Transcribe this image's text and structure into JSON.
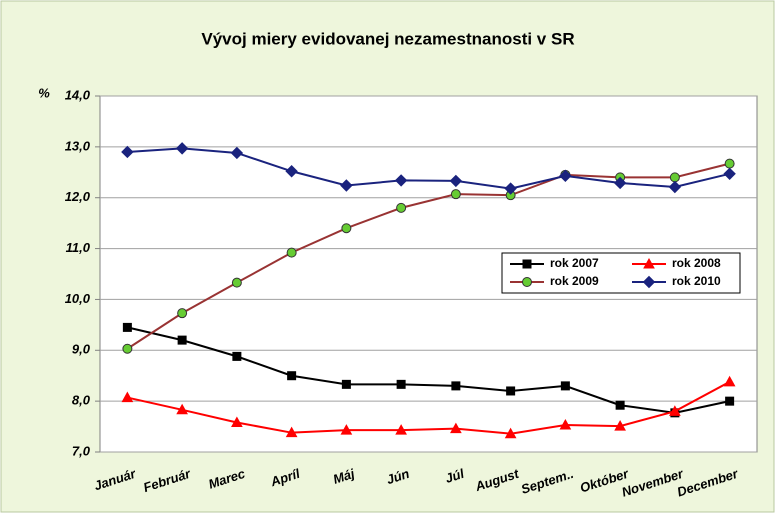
{
  "chart_data": {
    "type": "line",
    "title": "Vývoj miery evidovanej nezamestnanosti v SR",
    "y_label": "%",
    "categories": [
      "Január",
      "Február",
      "Marec",
      "Apríl",
      "Máj",
      "Jún",
      "Júl",
      "August",
      "Septem..",
      "Október",
      "November",
      "December"
    ],
    "series": [
      {
        "name": "rok 2007",
        "color": "#000000",
        "marker_color": "#000000",
        "marker": "square",
        "values": [
          9.45,
          9.2,
          8.88,
          8.5,
          8.33,
          8.33,
          8.3,
          8.2,
          8.3,
          7.92,
          7.77,
          8.0
        ]
      },
      {
        "name": "rok 2008",
        "color": "#ff0000",
        "marker_color": "#ff0000",
        "marker": "triangle",
        "values": [
          8.07,
          7.83,
          7.58,
          7.38,
          7.43,
          7.43,
          7.46,
          7.36,
          7.53,
          7.51,
          7.8,
          8.38
        ]
      },
      {
        "name": "rok 2009",
        "color": "#993333",
        "marker_color": "#66cc33",
        "marker": "circle",
        "values": [
          9.03,
          9.73,
          10.33,
          10.92,
          11.4,
          11.8,
          12.07,
          12.05,
          12.45,
          12.4,
          12.4,
          12.67
        ]
      },
      {
        "name": "rok 2010",
        "color": "#1a237e",
        "marker_color": "#1a237e",
        "marker": "diamond",
        "values": [
          12.9,
          12.97,
          12.88,
          12.52,
          12.24,
          12.34,
          12.33,
          12.18,
          12.43,
          12.29,
          12.21,
          12.47
        ]
      }
    ],
    "ylim": [
      7,
      14
    ],
    "yticks": [
      {
        "value": 7,
        "label": "7,0"
      },
      {
        "value": 8,
        "label": "8,0"
      },
      {
        "value": 9,
        "label": "9,0"
      },
      {
        "value": 10,
        "label": "10,0"
      },
      {
        "value": 11,
        "label": "11,0"
      },
      {
        "value": 12,
        "label": "12,0"
      },
      {
        "value": 13,
        "label": "13,0"
      },
      {
        "value": 14,
        "label": "14,0"
      }
    ],
    "grid": true
  }
}
